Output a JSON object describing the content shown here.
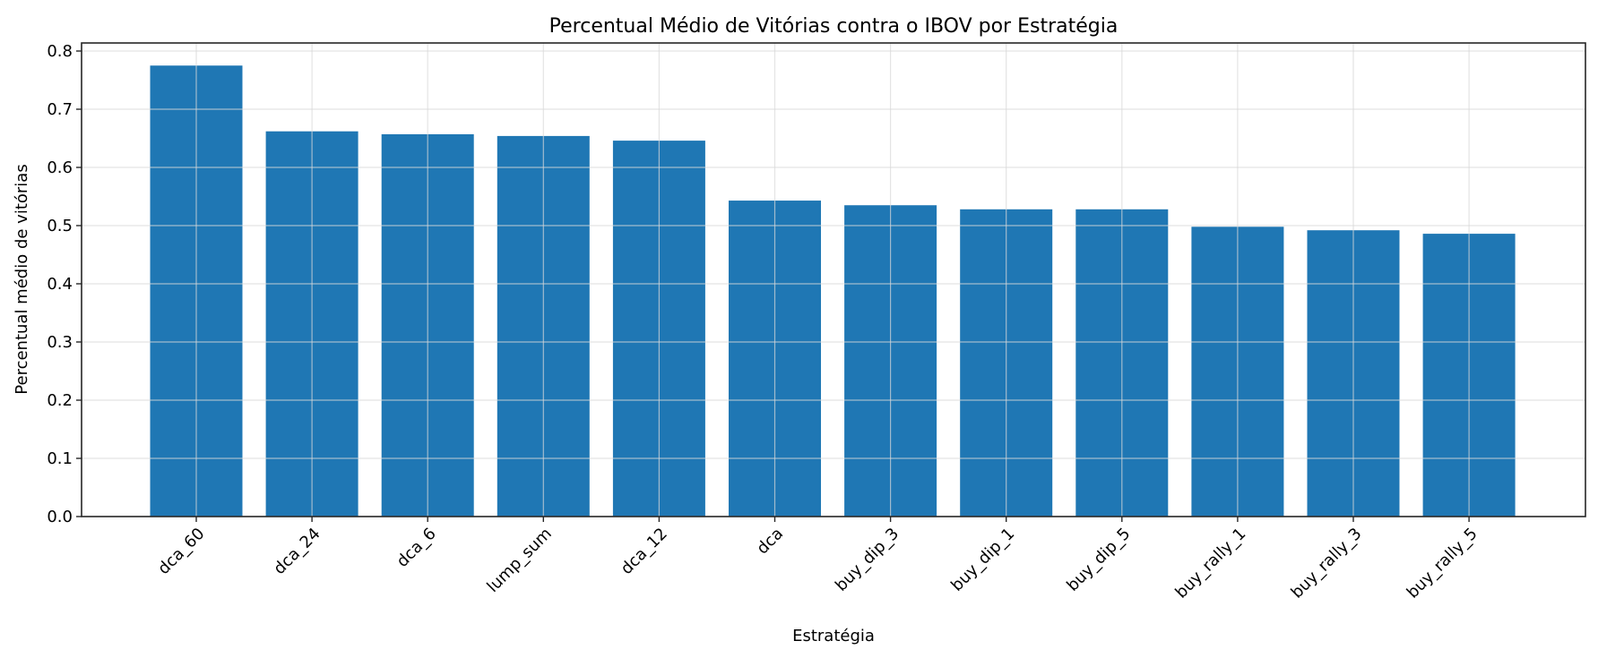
{
  "chart_data": {
    "type": "bar",
    "title": "Percentual Médio de Vitórias contra o IBOV por Estratégia",
    "xlabel": "Estratégia",
    "ylabel": "Percentual médio de vitórias",
    "categories": [
      "dca_60",
      "dca_24",
      "dca_6",
      "lump_sum",
      "dca_12",
      "dca",
      "buy_dip_3",
      "buy_dip_1",
      "buy_dip_5",
      "buy_rally_1",
      "buy_rally_3",
      "buy_rally_5"
    ],
    "values": [
      0.775,
      0.662,
      0.657,
      0.654,
      0.646,
      0.543,
      0.535,
      0.528,
      0.528,
      0.498,
      0.492,
      0.486
    ],
    "ylim": [
      0,
      0.815
    ],
    "yticks": [
      "0.0",
      "0.1",
      "0.2",
      "0.3",
      "0.4",
      "0.5",
      "0.6",
      "0.7",
      "0.8"
    ],
    "grid": true,
    "legend": null,
    "bar_color": "#1f77b4",
    "grid_color": "#e6e6e6"
  }
}
